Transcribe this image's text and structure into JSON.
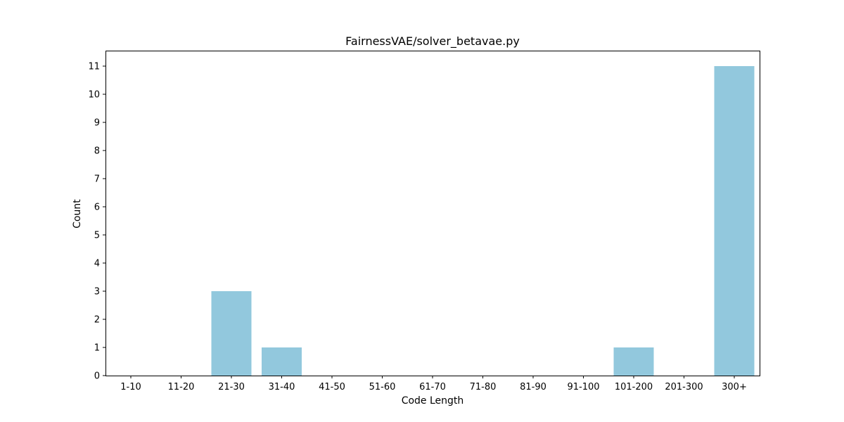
{
  "chart_data": {
    "type": "bar",
    "title": "FairnessVAE/solver_betavae.py",
    "xlabel": "Code Length",
    "ylabel": "Count",
    "categories": [
      "1-10",
      "11-20",
      "21-30",
      "31-40",
      "41-50",
      "51-60",
      "61-70",
      "71-80",
      "81-90",
      "91-100",
      "101-200",
      "201-300",
      "300+"
    ],
    "values": [
      0,
      0,
      3,
      1,
      0,
      0,
      0,
      0,
      0,
      0,
      1,
      0,
      11
    ],
    "yticks": [
      0,
      1,
      2,
      3,
      4,
      5,
      6,
      7,
      8,
      9,
      10,
      11
    ],
    "ylim": [
      0,
      11.55
    ],
    "bar_color": "#92c8dd",
    "grid": false,
    "legend": "none"
  }
}
